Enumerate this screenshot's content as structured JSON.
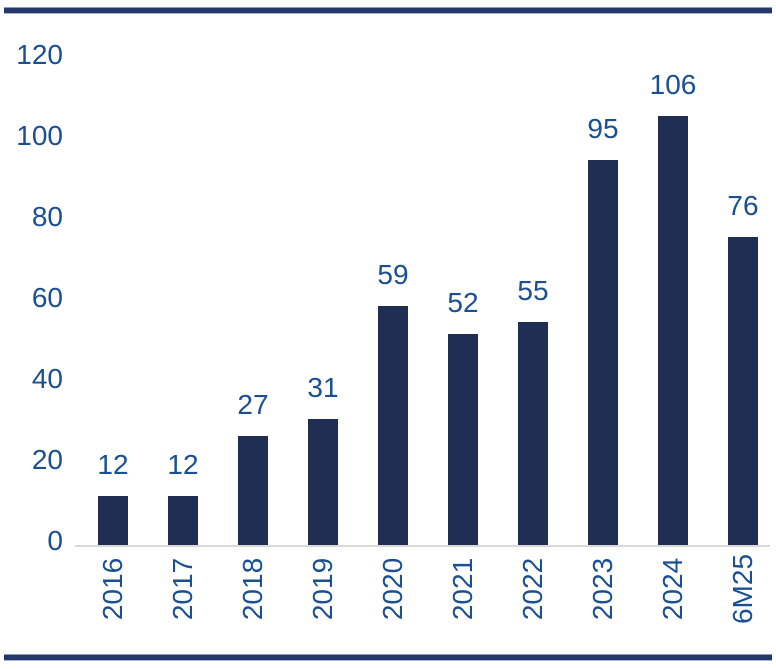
{
  "frame": {
    "rule_color": "#24386B",
    "background": "#ffffff"
  },
  "chart_data": {
    "type": "bar",
    "title": "",
    "xlabel": "",
    "ylabel": "",
    "categories": [
      "2016",
      "2017",
      "2018",
      "2019",
      "2020",
      "2021",
      "2022",
      "2023",
      "2024",
      "6M25"
    ],
    "values": [
      12,
      12,
      27,
      31,
      59,
      52,
      55,
      95,
      106,
      76
    ],
    "ylim": [
      0,
      120
    ],
    "yticks": [
      0,
      20,
      40,
      60,
      80,
      100,
      120
    ],
    "grid": false,
    "legend": false,
    "data_labels": true,
    "x_label_rotation": -90,
    "bar_color": "#1F2E52",
    "label_color": "#1B4F93",
    "axis_line_color": "#D9D9D9"
  }
}
